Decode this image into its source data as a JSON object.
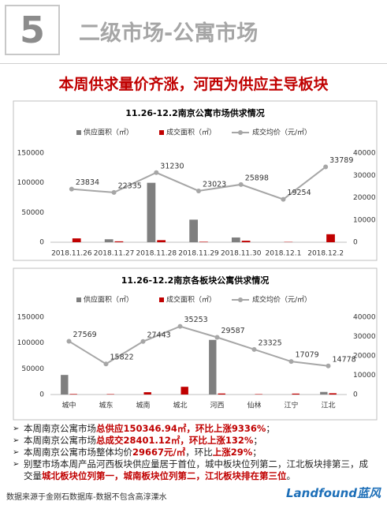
{
  "header": {
    "number": "5",
    "section": "二级市场-公寓市场",
    "headline": "本周供求量价齐涨，河西为供应主导板块"
  },
  "chart_data": [
    {
      "type": "bar_line",
      "title": "11.26-12.2南京公寓市场供求情况",
      "categories": [
        "2018.11.26",
        "2018.11.27",
        "2018.11.28",
        "2018.11.29",
        "2018.11.30",
        "2018.12.1",
        "2018.12.2"
      ],
      "series": [
        {
          "name": "供应面积（㎡）",
          "color": "#7f7f7f",
          "type": "bar",
          "axis": "y",
          "values": [
            0,
            5000,
            100000,
            38000,
            8000,
            0,
            0
          ]
        },
        {
          "name": "成交面积（㎡）",
          "color": "#c00000",
          "type": "bar",
          "axis": "y",
          "values": [
            6500,
            1500,
            3500,
            800,
            2500,
            500,
            13500
          ]
        },
        {
          "name": "成交均价（元/㎡）",
          "color": "#a6a6a6",
          "type": "line",
          "axis": "y2",
          "values": [
            23834,
            22335,
            31230,
            23023,
            25898,
            19254,
            33789
          ]
        }
      ],
      "ylim": [
        0,
        150000
      ],
      "yticks": [
        0,
        50000,
        100000,
        150000
      ],
      "y2lim": [
        0,
        40000
      ],
      "y2ticks": [
        0,
        10000,
        20000,
        30000,
        40000
      ],
      "grid": false,
      "legend": "top"
    },
    {
      "type": "bar_line",
      "title": "11.26-12.2南京各板块公寓供求情况",
      "categories": [
        "城中",
        "城东",
        "城南",
        "城北",
        "河西",
        "仙林",
        "江宁",
        "江北"
      ],
      "series": [
        {
          "name": "供应面积（㎡）",
          "color": "#7f7f7f",
          "type": "bar",
          "axis": "y",
          "values": [
            38000,
            0,
            0,
            0,
            106000,
            0,
            0,
            5000
          ]
        },
        {
          "name": "成交面积（㎡）",
          "color": "#c00000",
          "type": "bar",
          "axis": "y",
          "values": [
            1000,
            800,
            4500,
            15000,
            2000,
            800,
            1800,
            2500
          ]
        },
        {
          "name": "成交均价（元/㎡）",
          "color": "#a6a6a6",
          "type": "line",
          "axis": "y2",
          "values": [
            27569,
            15822,
            27443,
            35253,
            29587,
            23325,
            17079,
            14778
          ]
        }
      ],
      "ylim": [
        0,
        150000
      ],
      "yticks": [
        0,
        50000,
        100000,
        150000
      ],
      "y2lim": [
        0,
        40000
      ],
      "y2ticks": [
        0,
        10000,
        20000,
        30000,
        40000
      ],
      "grid": false,
      "legend": "top"
    }
  ],
  "bullets": [
    [
      {
        "text": "本周南京公寓市场",
        "highlight": false
      },
      {
        "text": "总供应150346.94㎡，环比上涨9336%",
        "highlight": true
      },
      {
        "text": "；",
        "highlight": false
      }
    ],
    [
      {
        "text": "本周南京公寓市场",
        "highlight": false
      },
      {
        "text": "总成交28401.12㎡，环比上涨132%",
        "highlight": true
      },
      {
        "text": "；",
        "highlight": false
      }
    ],
    [
      {
        "text": "本周南京公寓市场整体均价",
        "highlight": false
      },
      {
        "text": "29667元/㎡",
        "highlight": true
      },
      {
        "text": "，环比",
        "highlight": false
      },
      {
        "text": "上涨29%",
        "highlight": true
      },
      {
        "text": "；",
        "highlight": false
      }
    ],
    [
      {
        "text": "别墅市场本周产品河西板块供应量居于首位，城中板块位列第二，江北板块排第三，成交量",
        "highlight": false
      },
      {
        "text": "城北板块位列第一，城南板块位列第二，江北板块排在第三位",
        "highlight": true
      },
      {
        "text": "。",
        "highlight": false
      }
    ]
  ],
  "footer": {
    "source": "数据来源于金刚石数据库-数据不包含高淳溧水",
    "logo": "Landfound蓝风"
  }
}
